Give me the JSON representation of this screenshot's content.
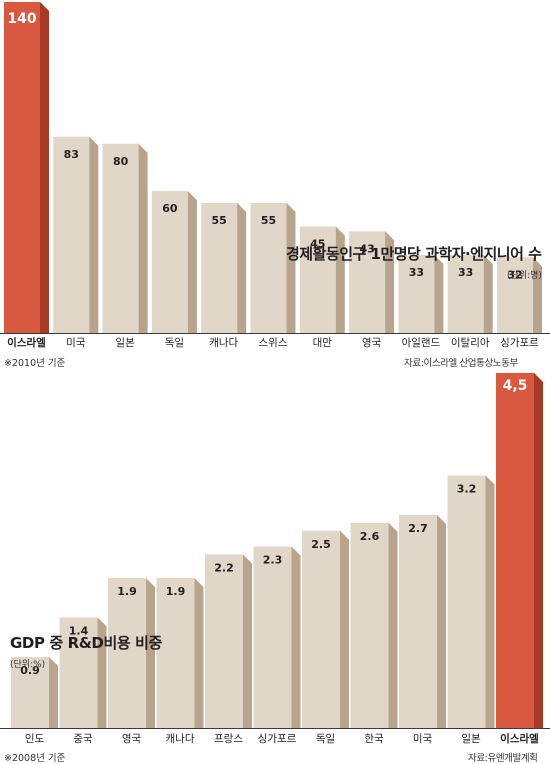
{
  "colors": {
    "bar_front": "#e1d7c8",
    "bar_side": "#b8a48c",
    "bar_top": "#ece5da",
    "highlight_front": "#d85840",
    "highlight_side": "#a83a25",
    "highlight_top": "#e88a76",
    "highlight_label": "#c0392b",
    "text": "#231f20",
    "highlight_value_text": "#ffffff"
  },
  "chart_data": [
    {
      "type": "bar",
      "title": "경제활동인구 1만명당 과학자·엔지니어 수",
      "unit": "(단위:명)",
      "note": "※2010년 기준",
      "source": "자료:이스라엘 산업통상노동부",
      "categories": [
        "이스라엘",
        "미국",
        "일본",
        "독일",
        "캐나다",
        "스위스",
        "대만",
        "영국",
        "아일랜드",
        "이탈리아",
        "싱가포르"
      ],
      "values": [
        140,
        83,
        80,
        60,
        55,
        55,
        45,
        43,
        33,
        33,
        32
      ],
      "value_labels": [
        "140",
        "83",
        "80",
        "60",
        "55",
        "55",
        "45",
        "43",
        "33",
        "33",
        "32"
      ],
      "highlight": "이스라엘",
      "ylim": [
        0,
        140
      ]
    },
    {
      "type": "bar",
      "title": "GDP 중 R&D비용 비중",
      "unit": "(단위:%)",
      "note": "※2008년 기준",
      "source": "자료:유엔개발계획",
      "categories": [
        "인도",
        "중국",
        "영국",
        "캐나다",
        "프랑스",
        "싱가포르",
        "독일",
        "한국",
        "미국",
        "일본",
        "이스라엘"
      ],
      "values": [
        0.9,
        1.4,
        1.9,
        1.9,
        2.2,
        2.3,
        2.5,
        2.6,
        2.7,
        3.2,
        4.5
      ],
      "value_labels": [
        "0.9",
        "1.4",
        "1.9",
        "1.9",
        "2.2",
        "2.3",
        "2.5",
        "2.6",
        "2.7",
        "3.2",
        "4,5"
      ],
      "highlight": "이스라엘",
      "ylim": [
        0,
        4.5
      ]
    }
  ]
}
